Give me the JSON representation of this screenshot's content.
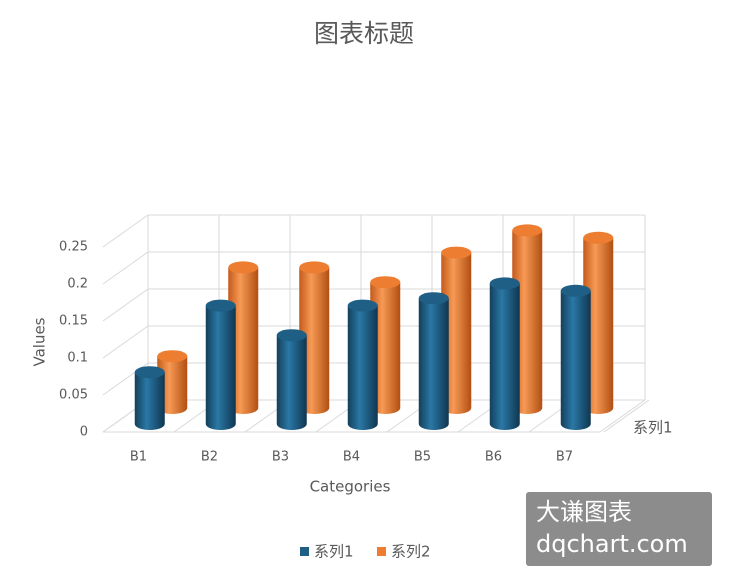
{
  "chart_data": {
    "type": "bar3d",
    "title": "图表标题",
    "x_label": "Categories",
    "y_label": "Values",
    "categories": [
      "B1",
      "B2",
      "B3",
      "B4",
      "B5",
      "B6",
      "B7"
    ],
    "depth_categories": [
      "系列1"
    ],
    "series": [
      {
        "name": "系列1",
        "color": "#1f5f86",
        "values": [
          0.07,
          0.16,
          0.12,
          0.16,
          0.17,
          0.19,
          0.18
        ]
      },
      {
        "name": "系列2",
        "color": "#ed7d31",
        "values": [
          0.07,
          0.19,
          0.19,
          0.17,
          0.21,
          0.24,
          0.23
        ]
      }
    ],
    "ylim": [
      0,
      0.25
    ],
    "yticks": [
      0,
      0.05,
      0.1,
      0.15,
      0.2,
      0.25
    ],
    "grid": true,
    "legend": "bottom"
  },
  "watermark": {
    "line1": "大谦图表",
    "line2": "dqchart.com"
  }
}
